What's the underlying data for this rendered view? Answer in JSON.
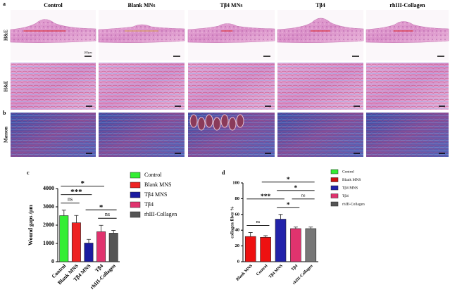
{
  "figure": {
    "panels": {
      "a": "a",
      "b": "b"
    },
    "columns": [
      "Control",
      "Blank MNs",
      "Tβ4 MNs",
      "Tβ4",
      "rhIII-Collagen"
    ],
    "rows": [
      "H&E",
      "H&E",
      "Masson"
    ],
    "scale_label": "200μm"
  },
  "chart_data": [
    {
      "type": "bar",
      "panel": "c",
      "ylabel": "Wound gaps /μm",
      "categories": [
        "Control",
        "Blank MNS",
        "Tβ4 MNS",
        "Tβ4",
        "rhIII-Collagen"
      ],
      "values": [
        2520,
        2130,
        1020,
        1640,
        1560
      ],
      "errors": [
        300,
        400,
        200,
        350,
        150
      ],
      "colors": [
        "#33ee33",
        "#ee2222",
        "#1a1aa0",
        "#e0336e",
        "#555555"
      ],
      "ylim": [
        0,
        4000
      ],
      "yticks": [
        0,
        1000,
        2000,
        3000,
        4000
      ],
      "legend": [
        {
          "name": "Control",
          "color": "#33ee33"
        },
        {
          "name": "Blank MNS",
          "color": "#ee2222"
        },
        {
          "name": "Tβ4 MNS",
          "color": "#1a1aa0"
        },
        {
          "name": "Tβ4",
          "color": "#e0336e"
        },
        {
          "name": "rhIII-Collagen",
          "color": "#555555"
        }
      ],
      "annotations": [
        {
          "text": "ns",
          "from": 0,
          "to": 1
        },
        {
          "text": "ns",
          "from": 3,
          "to": 4
        },
        {
          "text": "*",
          "from": 2,
          "to": 4
        },
        {
          "text": "***",
          "from": 0,
          "to": 2
        },
        {
          "text": "*",
          "from": 0,
          "to": 3
        }
      ]
    },
    {
      "type": "bar",
      "panel": "d",
      "ylabel": "collagen fiber %",
      "categories": [
        "Blank MNS",
        "Control",
        "Tβ4 MNS",
        "Tβ4",
        "rhIII-Collagen"
      ],
      "values": [
        32,
        31,
        54,
        42,
        42
      ],
      "errors": [
        5,
        2,
        6,
        2,
        2
      ],
      "colors": [
        "#ee1111",
        "#ee1111",
        "#2222aa",
        "#e0336e",
        "#777777"
      ],
      "ylim": [
        0,
        100
      ],
      "yticks": [
        0,
        20,
        40,
        60,
        80,
        100
      ],
      "legend": [
        {
          "name": "Control",
          "color": "#33ee33"
        },
        {
          "name": "Blank MNS",
          "color": "#cc1111"
        },
        {
          "name": "Tβ4 MNS",
          "color": "#2222aa"
        },
        {
          "name": "Tβ4",
          "color": "#e0336e"
        },
        {
          "name": "rhIII-Collagen",
          "color": "#555555"
        }
      ],
      "annotations": [
        {
          "text": "ns",
          "from": 0,
          "to": 1
        },
        {
          "text": "*",
          "from": 2,
          "to": 3
        },
        {
          "text": "ns",
          "from": 3,
          "to": 4
        },
        {
          "text": "***",
          "from": 0,
          "to": 2
        },
        {
          "text": "*",
          "from": 2,
          "to": 4
        },
        {
          "text": "*",
          "from": 1,
          "to": 4
        }
      ]
    }
  ]
}
